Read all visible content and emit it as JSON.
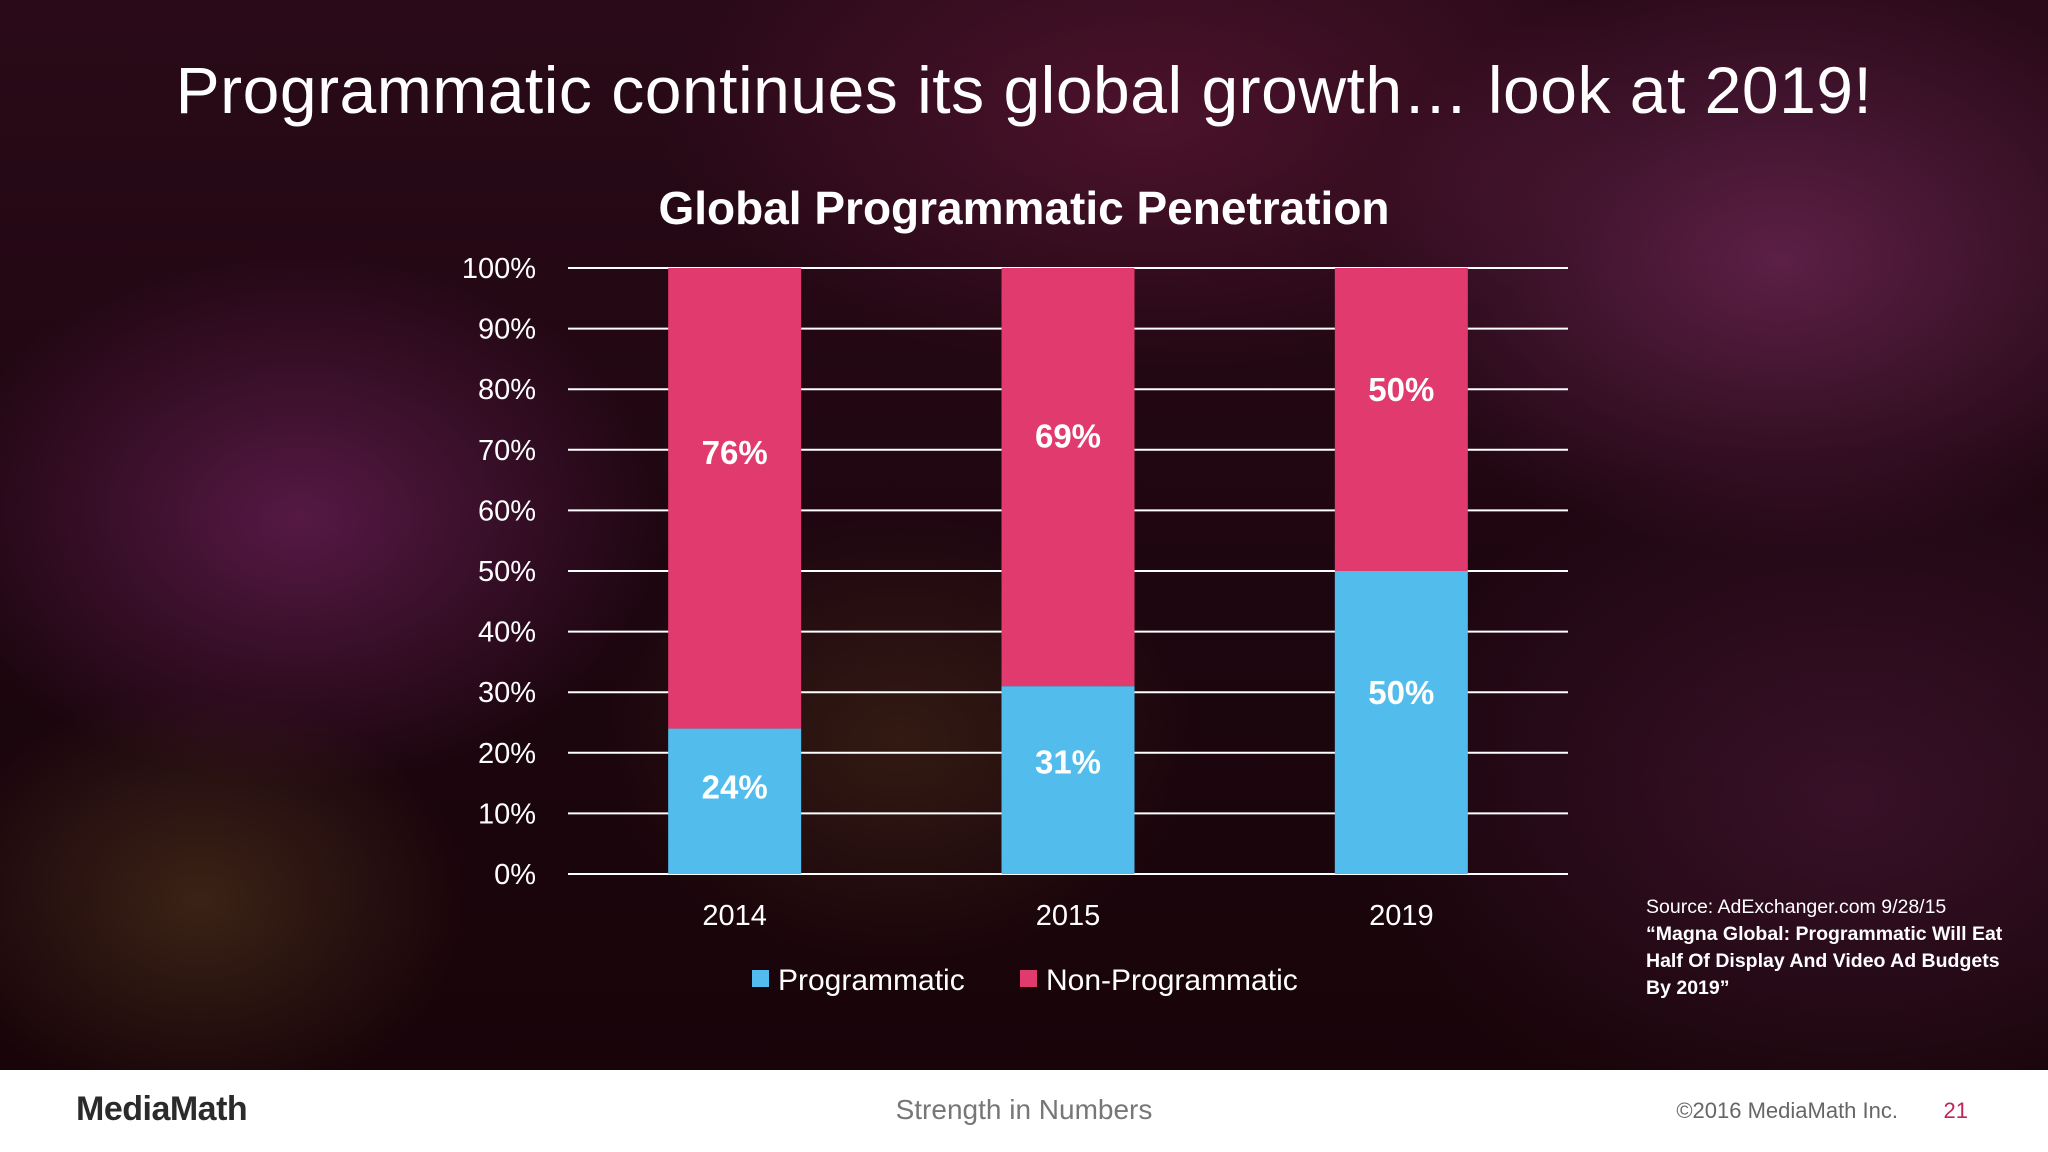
{
  "slide": {
    "title": "Programmatic continues its global growth… look at 2019!",
    "source_line": "Source: AdExchanger.com 9/28/15",
    "source_quote": "“Magna Global: Programmatic Will Eat Half Of Display And Video Ad Budgets By 2019”"
  },
  "footer": {
    "logo": "MediaMath",
    "tagline": "Strength in Numbers",
    "copyright": "©2016 MediaMath Inc.",
    "page_number": "21"
  },
  "colors": {
    "programmatic": "#52bdec",
    "non_programmatic": "#e03a6e",
    "page_number": "#c0245a"
  },
  "chart_data": {
    "type": "bar",
    "stacked": true,
    "title": "Global Programmatic  Penetration",
    "categories": [
      "2014",
      "2015",
      "2019"
    ],
    "series": [
      {
        "name": "Programmatic",
        "values": [
          24,
          31,
          50
        ],
        "labels": [
          "24%",
          "31%",
          "50%"
        ],
        "color": "#52bdec"
      },
      {
        "name": "Non-Programmatic",
        "values": [
          76,
          69,
          50
        ],
        "labels": [
          "76%",
          "69%",
          "50%"
        ],
        "color": "#e03a6e"
      }
    ],
    "ylim": [
      0,
      100
    ],
    "y_ticks": [
      "0%",
      "10%",
      "20%",
      "30%",
      "40%",
      "50%",
      "60%",
      "70%",
      "80%",
      "90%",
      "100%"
    ],
    "grid": true,
    "legend_position": "bottom"
  }
}
